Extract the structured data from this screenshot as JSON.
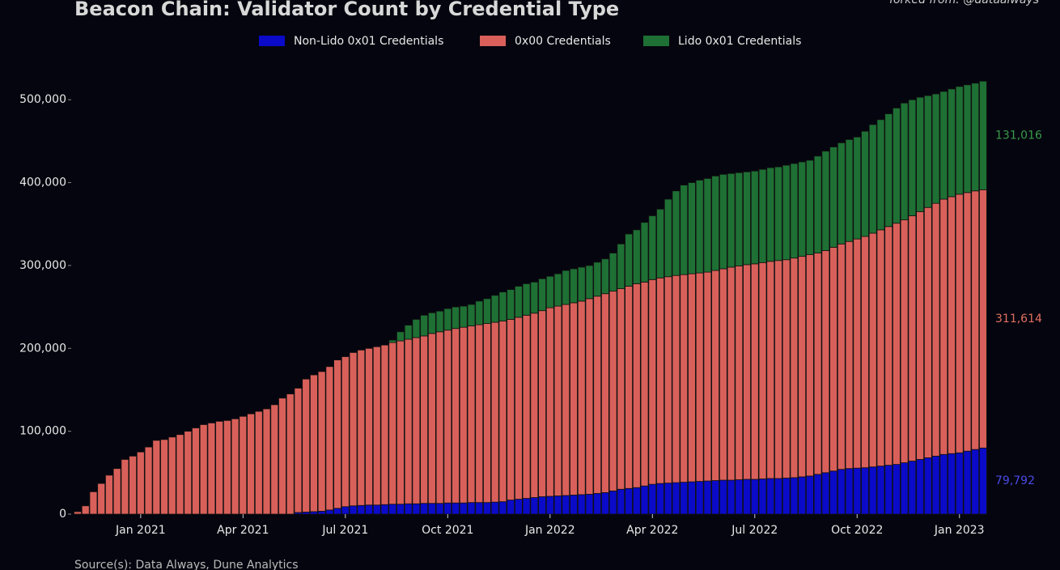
{
  "chart_data": {
    "type": "stacked_bar",
    "title": "Beacon Chain: Validator Count by Credential Type",
    "credit": "forked from: @dataalways",
    "source": "Source(s): Data Always, Dune Analytics",
    "categories": [
      null,
      null,
      null,
      null,
      null,
      null,
      null,
      null,
      "Jan 2021",
      null,
      null,
      null,
      null,
      null,
      null,
      null,
      null,
      null,
      null,
      null,
      null,
      "Apr 2021",
      null,
      null,
      null,
      null,
      null,
      null,
      null,
      null,
      null,
      null,
      null,
      null,
      "Jul 2021",
      null,
      null,
      null,
      null,
      null,
      null,
      null,
      null,
      null,
      null,
      null,
      null,
      "Oct 2021",
      null,
      null,
      null,
      null,
      null,
      null,
      null,
      null,
      null,
      null,
      null,
      null,
      "Jan 2022",
      null,
      null,
      null,
      null,
      null,
      null,
      null,
      null,
      null,
      null,
      null,
      null,
      "Apr 2022",
      null,
      null,
      null,
      null,
      null,
      null,
      null,
      null,
      null,
      null,
      null,
      null,
      "Jul 2022",
      null,
      null,
      null,
      null,
      null,
      null,
      null,
      null,
      null,
      null,
      null,
      null,
      "Oct 2022",
      null,
      null,
      null,
      null,
      null,
      null,
      null,
      null,
      null,
      null,
      null,
      null,
      "Jan 2023",
      null,
      null,
      null
    ],
    "series": [
      {
        "name": "Non-Lido 0x01 Credentials",
        "color": "#0a0ac8",
        "end_label": "79,792",
        "label_color": "#4a4ae8",
        "values": [
          0,
          0,
          0,
          0,
          0,
          0,
          0,
          0,
          0,
          0,
          0,
          0,
          0,
          0,
          0,
          0,
          0,
          0,
          0,
          0,
          0,
          0,
          0,
          0,
          0,
          0,
          0,
          0,
          2000,
          2500,
          3000,
          3500,
          5000,
          7000,
          9000,
          10000,
          10500,
          11000,
          11000,
          11500,
          12000,
          12000,
          12500,
          12500,
          13000,
          13000,
          13000,
          13500,
          13500,
          13500,
          14000,
          14000,
          14000,
          14500,
          15000,
          17000,
          18000,
          19000,
          20000,
          21000,
          21500,
          22000,
          22500,
          23000,
          23500,
          24000,
          25000,
          26000,
          28000,
          30000,
          31000,
          32000,
          34000,
          36000,
          37000,
          37500,
          38000,
          38500,
          39000,
          39500,
          40000,
          40500,
          41000,
          41000,
          41500,
          42000,
          42000,
          42500,
          43000,
          43000,
          43500,
          44000,
          45000,
          46000,
          48000,
          50000,
          52000,
          54000,
          55000,
          55500,
          56000,
          57000,
          58000,
          59000,
          60000,
          62000,
          64000,
          66000,
          68000,
          70000,
          72000,
          73000,
          74000,
          76000,
          78000,
          79792
        ]
      },
      {
        "name": "0x00 Credentials",
        "color": "#d9605a",
        "end_label": "311,614",
        "label_color": "#e0705f",
        "values": [
          3000,
          10000,
          27000,
          37000,
          47000,
          55000,
          66000,
          70000,
          75000,
          81000,
          89000,
          90000,
          93000,
          96000,
          100000,
          104000,
          108000,
          110000,
          112000,
          113000,
          115000,
          118000,
          121000,
          124000,
          127000,
          132000,
          140000,
          145000,
          150000,
          160500,
          165000,
          168500,
          173000,
          179000,
          181000,
          185000,
          187500,
          189000,
          191000,
          192500,
          195000,
          197000,
          198500,
          200500,
          202000,
          205000,
          207000,
          208500,
          210500,
          212000,
          213000,
          214500,
          216000,
          217000,
          218000,
          218000,
          219500,
          221000,
          222500,
          224500,
          227500,
          229000,
          230500,
          232000,
          233500,
          236000,
          238000,
          240000,
          241000,
          242000,
          244000,
          246000,
          246000,
          247000,
          248000,
          249000,
          250000,
          250500,
          251000,
          251500,
          252000,
          253500,
          255000,
          257000,
          258000,
          259000,
          260000,
          261000,
          262000,
          263000,
          263500,
          265000,
          266000,
          267000,
          267000,
          268000,
          270000,
          272000,
          274000,
          276500,
          279000,
          282000,
          285000,
          288000,
          291000,
          293000,
          296000,
          299000,
          302000,
          305000,
          308000,
          310000,
          312000,
          312000,
          312000,
          311614
        ]
      },
      {
        "name": "Lido 0x01 Credentials",
        "color": "#1e7034",
        "end_label": "131,016",
        "label_color": "#3a9a4a",
        "values": [
          0,
          0,
          0,
          0,
          0,
          0,
          0,
          0,
          0,
          0,
          0,
          0,
          0,
          0,
          0,
          0,
          0,
          0,
          0,
          0,
          0,
          0,
          0,
          0,
          0,
          0,
          0,
          0,
          0,
          0,
          0,
          0,
          0,
          0,
          0,
          0,
          0,
          0,
          0,
          0,
          3000,
          11000,
          17000,
          22000,
          25000,
          25000,
          25000,
          26000,
          26000,
          25500,
          26000,
          28500,
          30000,
          32500,
          35000,
          36000,
          37500,
          38000,
          37500,
          38500,
          38000,
          39000,
          41000,
          41000,
          41000,
          40000,
          41000,
          42000,
          46000,
          54000,
          63000,
          65000,
          72000,
          77000,
          83000,
          93500,
          102000,
          108000,
          110000,
          112000,
          113000,
          114000,
          114000,
          113000,
          112500,
          112000,
          112000,
          112500,
          113000,
          113000,
          114000,
          114000,
          114000,
          114000,
          117000,
          120000,
          121000,
          122000,
          123000,
          123000,
          127000,
          131000,
          133000,
          136000,
          139000,
          141000,
          140000,
          138000,
          135000,
          132000,
          130000,
          130000,
          130000,
          130000,
          130000,
          131016
        ]
      }
    ],
    "ylim": [
      0,
      550000
    ],
    "yticks": [
      0,
      {
        "value": 100000,
        "label": "100,000"
      },
      {
        "value": 200000,
        "label": "200,000"
      },
      {
        "value": 300000,
        "label": "300,000"
      },
      {
        "value": 400000,
        "label": "400,000"
      },
      {
        "value": 500000,
        "label": "500,000"
      }
    ],
    "background": "#05050f"
  }
}
